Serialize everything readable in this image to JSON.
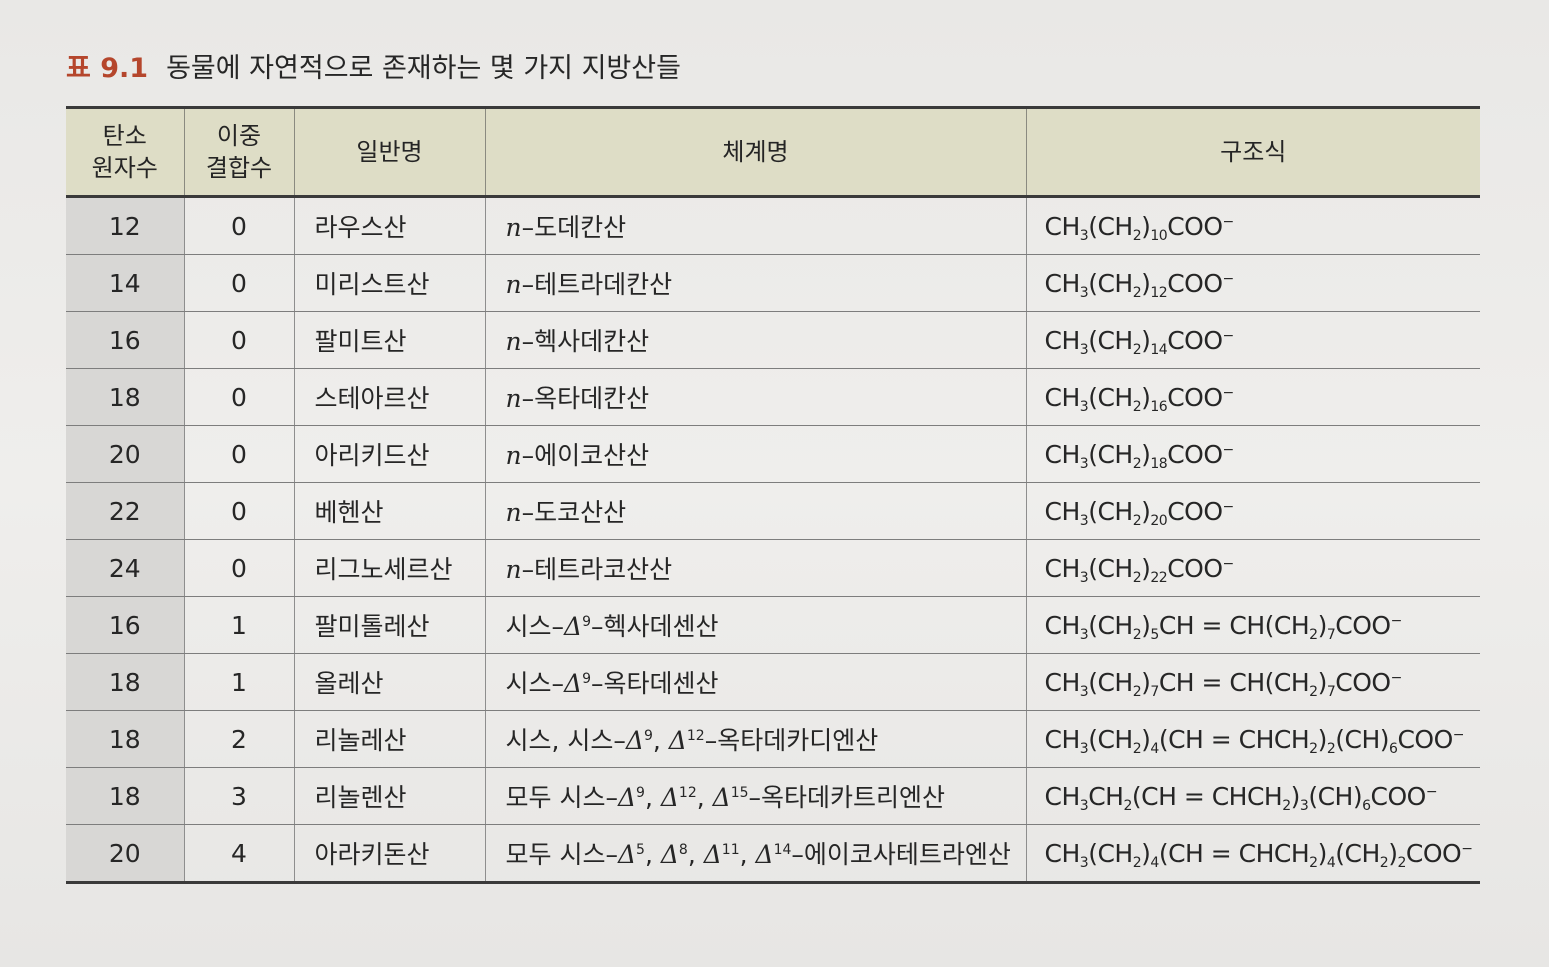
{
  "caption": {
    "number": "표 9.1",
    "title": "동물에 자연적으로 존재하는 몇 가지 지방산들"
  },
  "headers": {
    "carbons": [
      "탄소",
      "원자수"
    ],
    "double_bonds": [
      "이중",
      "결합수"
    ],
    "common_name": "일반명",
    "systematic_name": "체계명",
    "structure": "구조식"
  },
  "rows": [
    {
      "carbons": "12",
      "double_bonds": "0",
      "common": "라우스산",
      "systematic": [
        {
          "t": "n",
          "i": true
        },
        {
          "t": "–도데칸산"
        }
      ],
      "structure": [
        {
          "t": "CH"
        },
        {
          "t": "3",
          "sub": true
        },
        {
          "t": "(CH"
        },
        {
          "t": "2",
          "sub": true
        },
        {
          "t": ")"
        },
        {
          "t": "10",
          "sub": true
        },
        {
          "t": "COO"
        },
        {
          "t": "−",
          "sup": true
        }
      ]
    },
    {
      "carbons": "14",
      "double_bonds": "0",
      "common": "미리스트산",
      "systematic": [
        {
          "t": "n",
          "i": true
        },
        {
          "t": "–테트라데칸산"
        }
      ],
      "structure": [
        {
          "t": "CH"
        },
        {
          "t": "3",
          "sub": true
        },
        {
          "t": "(CH"
        },
        {
          "t": "2",
          "sub": true
        },
        {
          "t": ")"
        },
        {
          "t": "12",
          "sub": true
        },
        {
          "t": "COO"
        },
        {
          "t": "−",
          "sup": true
        }
      ]
    },
    {
      "carbons": "16",
      "double_bonds": "0",
      "common": "팔미트산",
      "systematic": [
        {
          "t": "n",
          "i": true
        },
        {
          "t": "–헥사데칸산"
        }
      ],
      "structure": [
        {
          "t": "CH"
        },
        {
          "t": "3",
          "sub": true
        },
        {
          "t": "(CH"
        },
        {
          "t": "2",
          "sub": true
        },
        {
          "t": ")"
        },
        {
          "t": "14",
          "sub": true
        },
        {
          "t": "COO"
        },
        {
          "t": "−",
          "sup": true
        }
      ]
    },
    {
      "carbons": "18",
      "double_bonds": "0",
      "common": "스테아르산",
      "systematic": [
        {
          "t": "n",
          "i": true
        },
        {
          "t": "–옥타데칸산"
        }
      ],
      "structure": [
        {
          "t": "CH"
        },
        {
          "t": "3",
          "sub": true
        },
        {
          "t": "(CH"
        },
        {
          "t": "2",
          "sub": true
        },
        {
          "t": ")"
        },
        {
          "t": "16",
          "sub": true
        },
        {
          "t": "COO"
        },
        {
          "t": "−",
          "sup": true
        }
      ]
    },
    {
      "carbons": "20",
      "double_bonds": "0",
      "common": "아리키드산",
      "systematic": [
        {
          "t": "n",
          "i": true
        },
        {
          "t": "–에이코산산"
        }
      ],
      "structure": [
        {
          "t": "CH"
        },
        {
          "t": "3",
          "sub": true
        },
        {
          "t": "(CH"
        },
        {
          "t": "2",
          "sub": true
        },
        {
          "t": ")"
        },
        {
          "t": "18",
          "sub": true
        },
        {
          "t": "COO"
        },
        {
          "t": "−",
          "sup": true
        }
      ]
    },
    {
      "carbons": "22",
      "double_bonds": "0",
      "common": "베헨산",
      "systematic": [
        {
          "t": "n",
          "i": true
        },
        {
          "t": "–도코산산"
        }
      ],
      "structure": [
        {
          "t": "CH"
        },
        {
          "t": "3",
          "sub": true
        },
        {
          "t": "(CH"
        },
        {
          "t": "2",
          "sub": true
        },
        {
          "t": ")"
        },
        {
          "t": "20",
          "sub": true
        },
        {
          "t": "COO"
        },
        {
          "t": "−",
          "sup": true
        }
      ]
    },
    {
      "carbons": "24",
      "double_bonds": "0",
      "common": "리그노세르산",
      "systematic": [
        {
          "t": "n",
          "i": true
        },
        {
          "t": "–테트라코산산"
        }
      ],
      "structure": [
        {
          "t": "CH"
        },
        {
          "t": "3",
          "sub": true
        },
        {
          "t": "(CH"
        },
        {
          "t": "2",
          "sub": true
        },
        {
          "t": ")"
        },
        {
          "t": "22",
          "sub": true
        },
        {
          "t": "COO"
        },
        {
          "t": "−",
          "sup": true
        }
      ]
    },
    {
      "carbons": "16",
      "double_bonds": "1",
      "common": "팔미톨레산",
      "systematic": [
        {
          "t": "시스–"
        },
        {
          "t": "Δ",
          "i": true
        },
        {
          "t": "9",
          "sup": true
        },
        {
          "t": "–헥사데센산"
        }
      ],
      "structure": [
        {
          "t": "CH"
        },
        {
          "t": "3",
          "sub": true
        },
        {
          "t": "(CH"
        },
        {
          "t": "2",
          "sub": true
        },
        {
          "t": ")"
        },
        {
          "t": "5",
          "sub": true
        },
        {
          "t": "CH = CH(CH"
        },
        {
          "t": "2",
          "sub": true
        },
        {
          "t": ")"
        },
        {
          "t": "7",
          "sub": true
        },
        {
          "t": "COO"
        },
        {
          "t": "−",
          "sup": true
        }
      ]
    },
    {
      "carbons": "18",
      "double_bonds": "1",
      "common": "올레산",
      "systematic": [
        {
          "t": "시스–"
        },
        {
          "t": "Δ",
          "i": true
        },
        {
          "t": "9",
          "sup": true
        },
        {
          "t": "–옥타데센산"
        }
      ],
      "structure": [
        {
          "t": "CH"
        },
        {
          "t": "3",
          "sub": true
        },
        {
          "t": "(CH"
        },
        {
          "t": "2",
          "sub": true
        },
        {
          "t": ")"
        },
        {
          "t": "7",
          "sub": true
        },
        {
          "t": "CH = CH(CH"
        },
        {
          "t": "2",
          "sub": true
        },
        {
          "t": ")"
        },
        {
          "t": "7",
          "sub": true
        },
        {
          "t": "COO"
        },
        {
          "t": "−",
          "sup": true
        }
      ]
    },
    {
      "carbons": "18",
      "double_bonds": "2",
      "common": "리놀레산",
      "systematic": [
        {
          "t": "시스, 시스–"
        },
        {
          "t": "Δ",
          "i": true
        },
        {
          "t": "9",
          "sup": true
        },
        {
          "t": ", "
        },
        {
          "t": "Δ",
          "i": true
        },
        {
          "t": "12",
          "sup": true
        },
        {
          "t": "–옥타데카디엔산"
        }
      ],
      "structure": [
        {
          "t": "CH"
        },
        {
          "t": "3",
          "sub": true
        },
        {
          "t": "(CH"
        },
        {
          "t": "2",
          "sub": true
        },
        {
          "t": ")"
        },
        {
          "t": "4",
          "sub": true
        },
        {
          "t": "(CH = CHCH"
        },
        {
          "t": "2",
          "sub": true
        },
        {
          "t": ")"
        },
        {
          "t": "2",
          "sub": true
        },
        {
          "t": "(CH)"
        },
        {
          "t": "6",
          "sub": true
        },
        {
          "t": "COO"
        },
        {
          "t": "−",
          "sup": true
        }
      ]
    },
    {
      "carbons": "18",
      "double_bonds": "3",
      "common": "리놀렌산",
      "systematic": [
        {
          "t": "모두 시스–"
        },
        {
          "t": "Δ",
          "i": true
        },
        {
          "t": "9",
          "sup": true
        },
        {
          "t": ", "
        },
        {
          "t": "Δ",
          "i": true
        },
        {
          "t": "12",
          "sup": true
        },
        {
          "t": ", "
        },
        {
          "t": "Δ",
          "i": true
        },
        {
          "t": "15",
          "sup": true
        },
        {
          "t": "–옥타데카트리엔산"
        }
      ],
      "structure": [
        {
          "t": "CH"
        },
        {
          "t": "3",
          "sub": true
        },
        {
          "t": "CH"
        },
        {
          "t": "2",
          "sub": true
        },
        {
          "t": "(CH = CHCH"
        },
        {
          "t": "2",
          "sub": true
        },
        {
          "t": ")"
        },
        {
          "t": "3",
          "sub": true
        },
        {
          "t": "(CH)"
        },
        {
          "t": "6",
          "sub": true
        },
        {
          "t": "COO"
        },
        {
          "t": "−",
          "sup": true
        }
      ]
    },
    {
      "carbons": "20",
      "double_bonds": "4",
      "common": "아라키돈산",
      "systematic": [
        {
          "t": "모두 시스–"
        },
        {
          "t": "Δ",
          "i": true
        },
        {
          "t": "5",
          "sup": true
        },
        {
          "t": ", "
        },
        {
          "t": "Δ",
          "i": true
        },
        {
          "t": "8",
          "sup": true
        },
        {
          "t": ", "
        },
        {
          "t": "Δ",
          "i": true
        },
        {
          "t": "11",
          "sup": true
        },
        {
          "t": ", "
        },
        {
          "t": "Δ",
          "i": true
        },
        {
          "t": "14",
          "sup": true
        },
        {
          "t": "–에이코사테트라엔산"
        }
      ],
      "structure": [
        {
          "t": "CH"
        },
        {
          "t": "3",
          "sub": true
        },
        {
          "t": "(CH"
        },
        {
          "t": "2",
          "sub": true
        },
        {
          "t": ")"
        },
        {
          "t": "4",
          "sub": true
        },
        {
          "t": "(CH = CHCH"
        },
        {
          "t": "2",
          "sub": true
        },
        {
          "t": ")"
        },
        {
          "t": "4",
          "sub": true
        },
        {
          "t": "(CH"
        },
        {
          "t": "2",
          "sub": true
        },
        {
          "t": ")"
        },
        {
          "t": "2",
          "sub": true
        },
        {
          "t": "COO"
        },
        {
          "t": "−",
          "sup": true
        }
      ]
    }
  ]
}
